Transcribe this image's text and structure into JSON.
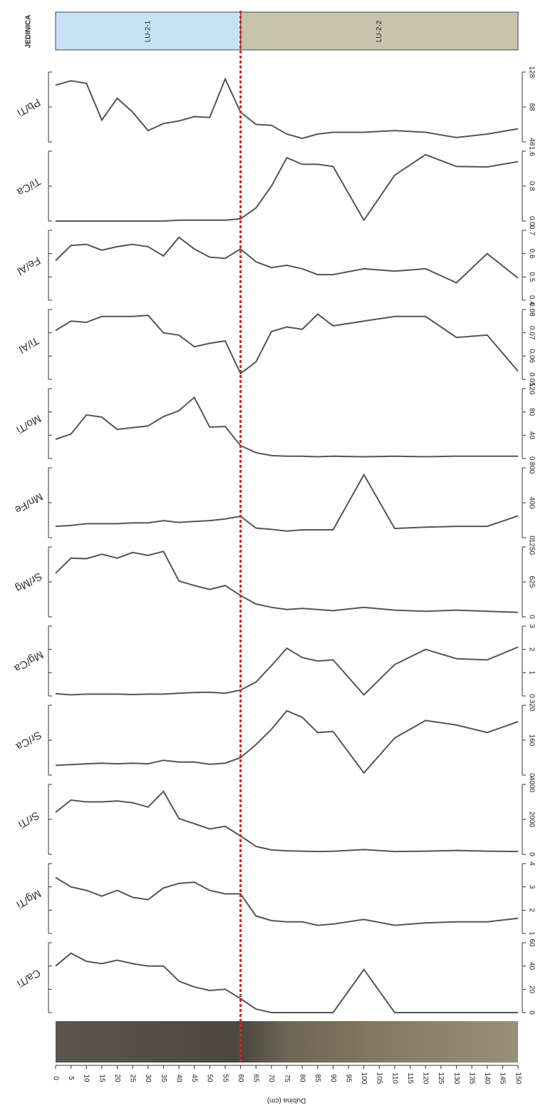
{
  "units": {
    "title": "JEDINICA",
    "items": [
      {
        "name": "LU-2-1",
        "from": 0,
        "to": 60,
        "color": "#c6e3f5"
      },
      {
        "name": "LU-2-2",
        "from": 60,
        "to": 150,
        "color": "#c8c3ad"
      }
    ]
  },
  "depth_axis": {
    "label": "Dubina (cm)",
    "xlim": [
      0,
      150
    ],
    "xticks": [
      0,
      5,
      10,
      15,
      20,
      25,
      30,
      35,
      40,
      45,
      50,
      55,
      60,
      65,
      70,
      75,
      80,
      85,
      90,
      95,
      100,
      105,
      110,
      115,
      120,
      125,
      130,
      135,
      140,
      145,
      150
    ]
  },
  "chart_data": [
    {
      "type": "line",
      "title": "Pb/Ti",
      "color": "#555555",
      "x": [
        0,
        5,
        10,
        15,
        20,
        25,
        30,
        35,
        40,
        45,
        50,
        55,
        60,
        65,
        70,
        75,
        80,
        85,
        90,
        100,
        110,
        120,
        130,
        140,
        150
      ],
      "values": [
        113,
        118,
        115,
        73,
        98,
        82,
        61,
        69,
        72,
        77,
        76,
        120,
        82,
        68,
        67,
        57,
        52,
        57,
        59,
        59,
        61,
        59,
        53,
        57,
        63
      ],
      "ylim": [
        48,
        128
      ],
      "yticks": [
        48,
        88,
        128
      ]
    },
    {
      "type": "line",
      "title": "Ti/Ca",
      "color": "#555555",
      "x": [
        0,
        5,
        10,
        15,
        20,
        25,
        30,
        35,
        40,
        45,
        50,
        55,
        60,
        65,
        70,
        75,
        80,
        85,
        90,
        100,
        110,
        120,
        130,
        140,
        150
      ],
      "values": [
        0,
        0,
        0,
        0,
        0,
        0,
        0,
        0,
        0.02,
        0.02,
        0.02,
        0.02,
        0.05,
        0.3,
        0.8,
        1.45,
        1.3,
        1.3,
        1.25,
        0.02,
        1.05,
        1.52,
        1.25,
        1.24,
        1.36
      ],
      "ylim": [
        0,
        1.6
      ],
      "yticks": [
        {
          "value": 0,
          "label": "0.0"
        },
        0.8,
        1.6
      ]
    },
    {
      "type": "line",
      "title": "Fe/Al",
      "color": "#555555",
      "x": [
        0,
        5,
        10,
        15,
        20,
        25,
        30,
        35,
        40,
        45,
        50,
        55,
        60,
        65,
        70,
        75,
        80,
        85,
        90,
        100,
        110,
        120,
        130,
        140,
        150
      ],
      "values": [
        0.57,
        0.635,
        0.64,
        0.615,
        0.63,
        0.64,
        0.63,
        0.59,
        0.67,
        0.62,
        0.585,
        0.58,
        0.62,
        0.565,
        0.54,
        0.55,
        0.535,
        0.51,
        0.51,
        0.535,
        0.525,
        0.535,
        0.475,
        0.6,
        0.495
      ],
      "ylim": [
        0.4,
        0.7
      ],
      "yticks": [
        0.4,
        0.5,
        0.6,
        0.7
      ]
    },
    {
      "type": "line",
      "title": "Ti/Al",
      "color": "#555555",
      "x": [
        0,
        5,
        10,
        15,
        20,
        25,
        30,
        35,
        40,
        45,
        50,
        55,
        60,
        65,
        70,
        75,
        80,
        85,
        90,
        100,
        110,
        120,
        130,
        140,
        150
      ],
      "values": [
        0.071,
        0.075,
        0.0745,
        0.077,
        0.077,
        0.077,
        0.0775,
        0.07,
        0.069,
        0.064,
        0.0655,
        0.0665,
        0.0525,
        0.0575,
        0.0705,
        0.0725,
        0.0715,
        0.078,
        0.073,
        0.075,
        0.077,
        0.077,
        0.068,
        0.069,
        0.0535
      ],
      "ylim": [
        0.05,
        0.08
      ],
      "yticks": [
        0.05,
        0.06,
        0.07,
        0.08
      ]
    },
    {
      "type": "line",
      "title": "Mo/Ti",
      "color": "#555555",
      "x": [
        0,
        5,
        10,
        15,
        20,
        25,
        30,
        35,
        40,
        45,
        50,
        55,
        60,
        65,
        70,
        75,
        80,
        85,
        90,
        100,
        110,
        120,
        130,
        140,
        150
      ],
      "values": [
        33,
        42,
        75,
        71,
        50,
        53,
        56,
        72,
        82,
        105,
        54,
        55,
        22,
        10,
        5,
        4,
        4,
        3,
        4,
        3,
        4,
        3,
        4,
        4,
        4
      ],
      "ylim": [
        0,
        120
      ],
      "yticks": [
        0,
        40,
        80,
        120
      ]
    },
    {
      "type": "line",
      "title": "Mn/Fe",
      "color": "#555555",
      "x": [
        0,
        5,
        10,
        15,
        20,
        25,
        30,
        35,
        40,
        45,
        50,
        55,
        60,
        65,
        70,
        75,
        80,
        85,
        90,
        100,
        110,
        120,
        130,
        140,
        150
      ],
      "values": [
        130,
        140,
        160,
        160,
        160,
        170,
        170,
        195,
        175,
        185,
        195,
        215,
        245,
        110,
        95,
        75,
        90,
        90,
        90,
        720,
        105,
        120,
        130,
        130,
        250
      ],
      "ylim": [
        0,
        800
      ],
      "yticks": [
        0,
        400,
        800
      ]
    },
    {
      "type": "line",
      "title": "Sr/Mg",
      "color": "#555555",
      "x": [
        0,
        5,
        10,
        15,
        20,
        25,
        30,
        35,
        40,
        45,
        50,
        55,
        60,
        65,
        70,
        75,
        80,
        85,
        90,
        100,
        110,
        120,
        130,
        140,
        150
      ],
      "values": [
        780,
        1050,
        1040,
        1120,
        1050,
        1150,
        1100,
        1170,
        640,
        560,
        490,
        560,
        380,
        230,
        170,
        130,
        150,
        130,
        110,
        170,
        120,
        100,
        120,
        100,
        80
      ],
      "ylim": [
        0,
        1250
      ],
      "yticks": [
        0,
        625,
        1250
      ]
    },
    {
      "type": "line",
      "title": "Mg/Ca",
      "color": "#555555",
      "x": [
        0,
        5,
        10,
        15,
        20,
        25,
        30,
        35,
        40,
        45,
        50,
        55,
        60,
        65,
        70,
        75,
        80,
        85,
        90,
        100,
        110,
        120,
        130,
        140,
        150
      ],
      "values": [
        0.1,
        0.05,
        0.08,
        0.08,
        0.08,
        0.06,
        0.08,
        0.08,
        0.12,
        0.15,
        0.16,
        0.12,
        0.25,
        0.6,
        1.3,
        2.05,
        1.65,
        1.5,
        1.55,
        0.05,
        1.35,
        2.0,
        1.6,
        1.55,
        2.1
      ],
      "ylim": [
        0,
        3
      ],
      "yticks": [
        0,
        1,
        2,
        3
      ]
    },
    {
      "type": "line",
      "title": "Sr/Ca",
      "color": "#555555",
      "x": [
        0,
        5,
        10,
        15,
        20,
        25,
        30,
        35,
        40,
        45,
        50,
        55,
        60,
        65,
        70,
        75,
        80,
        85,
        90,
        100,
        110,
        120,
        130,
        140,
        150
      ],
      "values": [
        45,
        48,
        52,
        55,
        52,
        55,
        52,
        68,
        60,
        60,
        50,
        55,
        80,
        140,
        210,
        295,
        265,
        195,
        200,
        10,
        170,
        250,
        230,
        195,
        245
      ],
      "ylim": [
        0,
        320
      ],
      "yticks": [
        0,
        160,
        320
      ]
    },
    {
      "type": "line",
      "title": "Sr/Ti",
      "color": "#555555",
      "x": [
        0,
        5,
        10,
        15,
        20,
        25,
        30,
        35,
        40,
        45,
        50,
        55,
        60,
        65,
        70,
        75,
        80,
        85,
        90,
        100,
        110,
        120,
        130,
        140,
        150
      ],
      "values": [
        2400,
        3100,
        3000,
        3000,
        3050,
        2950,
        2700,
        3600,
        2050,
        1750,
        1450,
        1600,
        1050,
        450,
        250,
        200,
        180,
        160,
        170,
        270,
        160,
        180,
        220,
        180,
        160
      ],
      "ylim": [
        0,
        4000
      ],
      "yticks": [
        0,
        2000,
        4000
      ]
    },
    {
      "type": "line",
      "title": "Mg/Ti",
      "color": "#555555",
      "x": [
        0,
        5,
        10,
        15,
        20,
        25,
        30,
        35,
        40,
        45,
        50,
        55,
        60,
        65,
        70,
        75,
        80,
        85,
        90,
        100,
        110,
        120,
        130,
        140,
        150
      ],
      "values": [
        3.4,
        3.0,
        2.85,
        2.6,
        2.85,
        2.55,
        2.45,
        2.95,
        3.15,
        3.2,
        2.85,
        2.7,
        2.7,
        1.75,
        1.55,
        1.5,
        1.5,
        1.35,
        1.4,
        1.6,
        1.35,
        1.45,
        1.5,
        1.5,
        1.65
      ],
      "ylim": [
        1,
        4
      ],
      "yticks": [
        1,
        2,
        3,
        4
      ]
    },
    {
      "type": "line",
      "title": "Ca/Ti",
      "color": "#555555",
      "x": [
        0,
        5,
        10,
        15,
        20,
        25,
        30,
        35,
        40,
        45,
        50,
        55,
        60,
        65,
        70,
        75,
        80,
        85,
        90,
        100,
        110,
        120,
        130,
        140,
        150
      ],
      "values": [
        40,
        51,
        44,
        42,
        45,
        42,
        40,
        40,
        27,
        22,
        19,
        20,
        12,
        3,
        0,
        0,
        0,
        0,
        0,
        37,
        0,
        0,
        0,
        0,
        0
      ],
      "ylim": [
        0,
        60
      ],
      "yticks": [
        0,
        20,
        40,
        60
      ]
    }
  ]
}
